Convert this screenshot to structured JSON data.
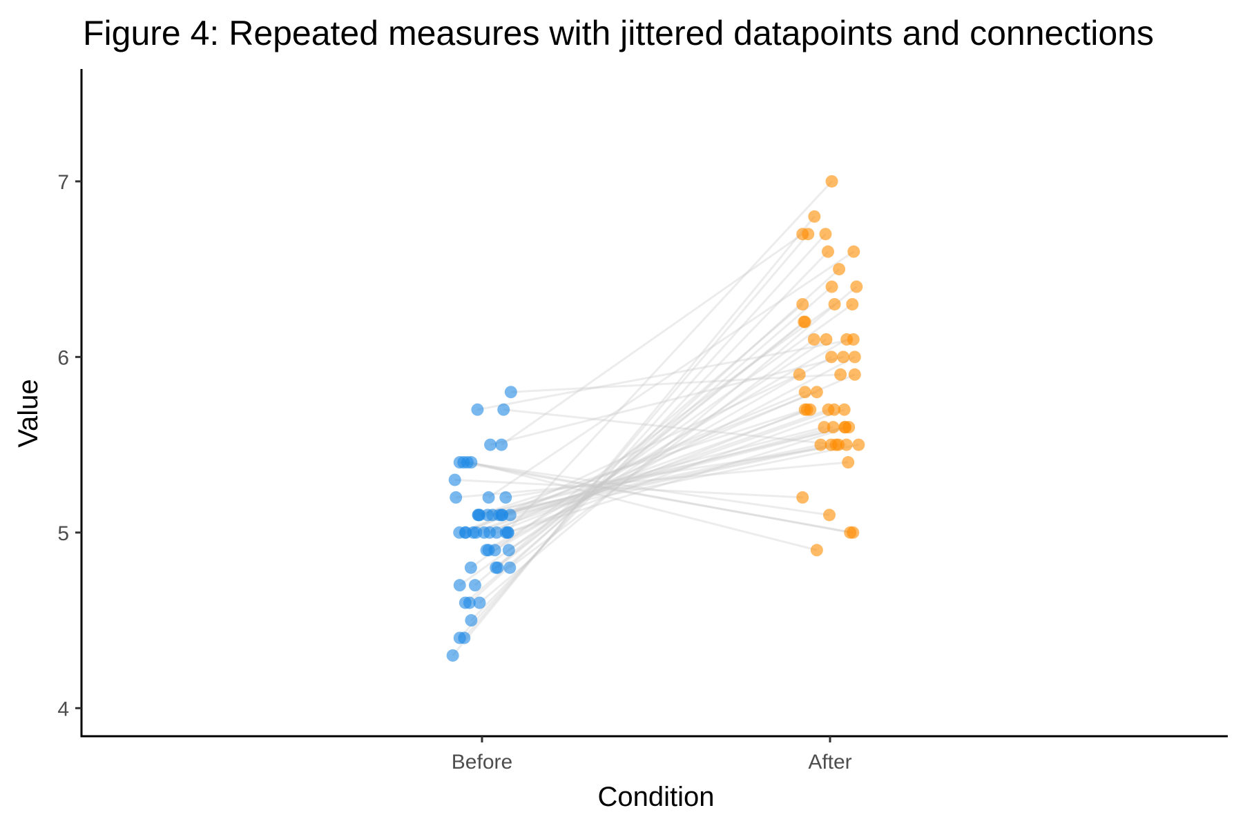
{
  "chart_data": {
    "type": "scatter",
    "title": "Figure 4: Repeated measures with jittered datapoints and connections",
    "xlabel": "Condition",
    "ylabel": "Value",
    "categories": [
      "Before",
      "After"
    ],
    "ylim": [
      3.84,
      7.64
    ],
    "yticks": [
      4,
      5,
      6,
      7
    ],
    "grid": false,
    "legend": "none",
    "colors": {
      "Before": "#1e88e5",
      "After": "#ff8c00",
      "lines": "#c8c8c8"
    },
    "series": [
      {
        "name": "Before",
        "x": [
          -0.084,
          -0.051,
          -0.064,
          -0.031,
          -0.036,
          -0.048,
          -0.007,
          -0.064,
          -0.02,
          -0.032,
          0.045,
          0.04,
          0.08,
          0.077,
          0.013,
          0.037,
          0.019,
          0.022,
          -0.047,
          -0.065,
          -0.048,
          -0.025,
          -0.017,
          0.006,
          0.042,
          0.074,
          0.075,
          -0.01,
          -0.007,
          0.05,
          0.057,
          0.058,
          0.081,
          0.03,
          0.068,
          -0.075,
          -0.078,
          -0.053,
          -0.064,
          -0.042,
          -0.031,
          0.024,
          0.056,
          -0.013,
          0.062,
          0.083,
          -0.011,
          0.016,
          0.019,
          0.069
        ],
        "y": [
          4.3,
          4.4,
          4.4,
          4.5,
          4.6,
          4.6,
          4.6,
          4.7,
          4.7,
          4.8,
          4.8,
          4.8,
          4.8,
          4.9,
          4.9,
          4.9,
          4.9,
          5.0,
          5.0,
          5.0,
          5.0,
          5.0,
          5.0,
          5.0,
          5.0,
          5.0,
          5.0,
          5.1,
          5.1,
          5.1,
          5.1,
          5.1,
          5.1,
          5.1,
          5.2,
          5.2,
          5.3,
          5.4,
          5.4,
          5.4,
          5.4,
          5.5,
          5.5,
          5.7,
          5.7,
          5.8,
          5.1,
          5.1,
          5.2,
          5.0
        ]
      },
      {
        "name": "After",
        "x": [
          -0.045,
          -0.063,
          -0.013,
          -0.006,
          0.026,
          0.005,
          0.076,
          0.064,
          -0.079,
          0.013,
          -0.072,
          -0.075,
          -0.046,
          -0.011,
          0.048,
          0.004,
          0.071,
          0.071,
          -0.088,
          -0.038,
          -0.072,
          -0.057,
          -0.005,
          0.012,
          -0.066,
          0.041,
          0.054,
          -0.017,
          0.042,
          0.044,
          0.009,
          0.017,
          0.082,
          0.003,
          0.047,
          0.052,
          -0.079,
          -0.002,
          0.066,
          0.058,
          -0.038,
          0.038,
          -0.079,
          0.067,
          0.024,
          0.03,
          -0.072,
          -0.027,
          0.068,
          0.005
        ],
        "y": [
          6.8,
          6.7,
          6.7,
          6.6,
          6.5,
          6.4,
          6.4,
          6.3,
          6.3,
          6.3,
          6.2,
          6.2,
          6.1,
          6.1,
          6.1,
          6.0,
          6.0,
          5.9,
          5.9,
          5.8,
          5.8,
          5.7,
          5.7,
          5.7,
          5.7,
          5.7,
          5.6,
          5.6,
          5.6,
          5.6,
          5.6,
          5.5,
          5.5,
          5.5,
          5.5,
          5.4,
          5.2,
          5.1,
          5.0,
          5.0,
          4.9,
          6.0,
          6.7,
          6.1,
          5.5,
          5.9,
          5.7,
          5.5,
          6.6,
          7.0
        ]
      }
    ]
  }
}
